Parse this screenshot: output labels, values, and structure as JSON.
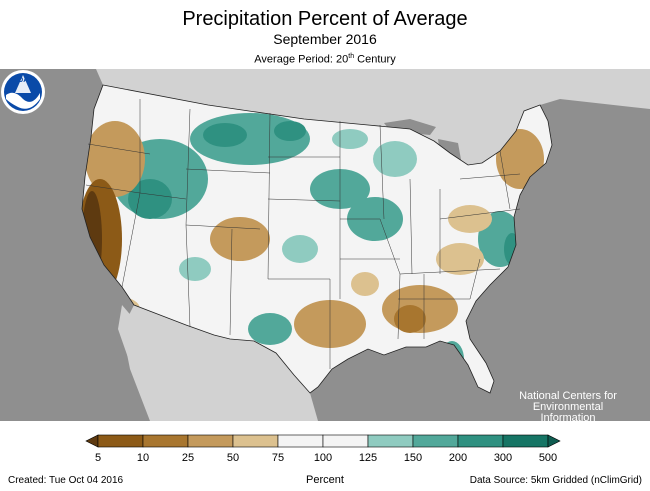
{
  "header": {
    "title": "Precipitation Percent of Average",
    "subtitle": "September 2016",
    "period_prefix": "Average Period: 20",
    "period_sup": "th",
    "period_suffix": " Century"
  },
  "logo": {
    "icon": "noaa-logo-icon",
    "text": "NOAA",
    "center_lines": [
      "National Centers for",
      "Environmental",
      "Information"
    ]
  },
  "legend": {
    "ticks": [
      "5",
      "10",
      "25",
      "50",
      "75",
      "100",
      "125",
      "150",
      "200",
      "300",
      "500"
    ],
    "colors": [
      "#8c5a17",
      "#a8762f",
      "#c49a5c",
      "#dcc18f",
      "#f4f4f4",
      "#f4f4f4",
      "#8fcbc0",
      "#52a89a",
      "#2f9181",
      "#167565"
    ],
    "unit_label": "Percent"
  },
  "footer": {
    "created": "Created: Tue Oct 04 2016",
    "source": "Data Source: 5km Gridded (nClimGrid)"
  },
  "colors": {
    "land_other": "#d2d2d2",
    "water": "#8f8f8f",
    "near_normal": "#f4f4f4",
    "dry": "#c49a5c",
    "very_dry": "#6e4413",
    "wet": "#52a89a",
    "very_wet": "#167565"
  }
}
